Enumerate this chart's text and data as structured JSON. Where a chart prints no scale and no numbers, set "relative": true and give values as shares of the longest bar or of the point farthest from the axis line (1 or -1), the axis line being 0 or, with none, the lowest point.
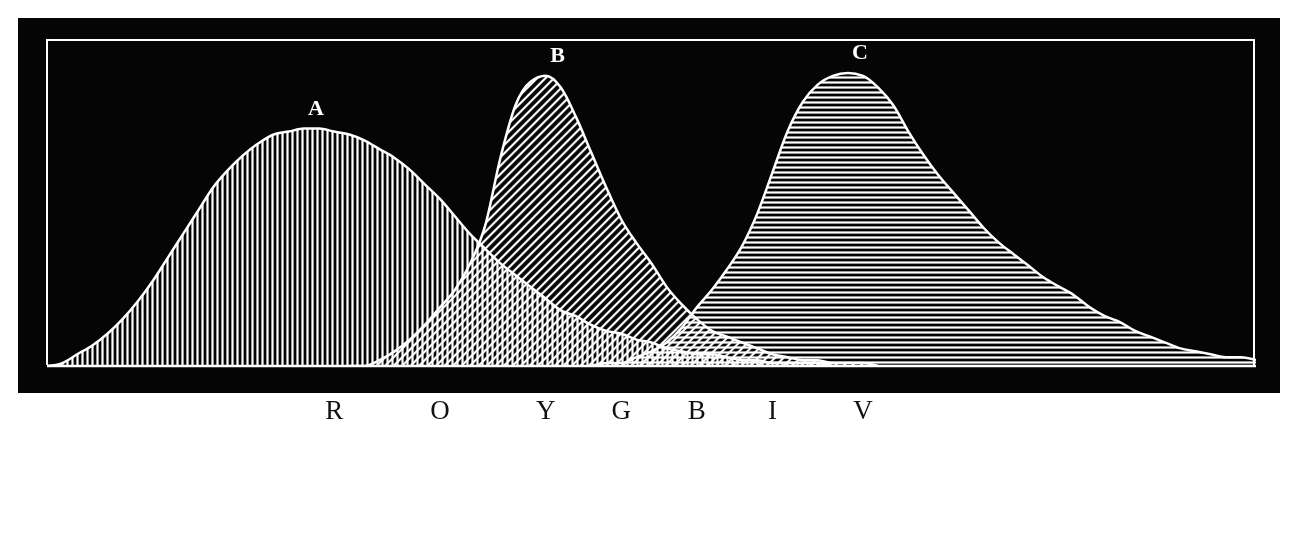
{
  "chart_data": {
    "type": "area",
    "relative": true,
    "tick_labels": "x",
    "categories": [
      null,
      null,
      null,
      null,
      null,
      null,
      null,
      null,
      null,
      null,
      null,
      null,
      null,
      null,
      null,
      null,
      null,
      null,
      null,
      "R",
      null,
      null,
      null,
      null,
      null,
      null,
      "O",
      null,
      null,
      null,
      null,
      null,
      null,
      "Y",
      null,
      null,
      null,
      null,
      "G",
      null,
      null,
      null,
      null,
      "B",
      null,
      null,
      null,
      null,
      "I",
      null,
      null,
      null,
      null,
      null,
      "V",
      null,
      null,
      null,
      null,
      null,
      null,
      null,
      null,
      null,
      null,
      null,
      null,
      null,
      null,
      null,
      null,
      null,
      null,
      null,
      null,
      null,
      null,
      null,
      null,
      null,
      null
    ],
    "series": [
      {
        "name": "A",
        "color": "#ffffff",
        "values": [
          0,
          0.01,
          0.04,
          0.07,
          0.11,
          0.16,
          0.22,
          0.29,
          0.37,
          0.45,
          0.53,
          0.61,
          0.67,
          0.72,
          0.76,
          0.79,
          0.8,
          0.81,
          0.81,
          0.8,
          0.79,
          0.77,
          0.74,
          0.71,
          0.67,
          0.62,
          0.57,
          0.51,
          0.45,
          0.4,
          0.35,
          0.31,
          0.27,
          0.23,
          0.19,
          0.17,
          0.14,
          0.12,
          0.11,
          0.09,
          0.08,
          0.06,
          0.05,
          0.04,
          0.04,
          0.03,
          0.02,
          0.02,
          0.01,
          0.01,
          0.01,
          0.01,
          0,
          null,
          null,
          null,
          null,
          null,
          null,
          null,
          null,
          null,
          null,
          null,
          null,
          null,
          null,
          null,
          null,
          null,
          null,
          null,
          null,
          null,
          null,
          null,
          null,
          null,
          null,
          null,
          null
        ]
      },
      {
        "name": "B",
        "color": "#ffffff",
        "values": [
          null,
          null,
          null,
          null,
          null,
          null,
          null,
          null,
          null,
          null,
          null,
          null,
          null,
          null,
          null,
          null,
          null,
          null,
          null,
          null,
          0,
          0,
          0.02,
          0.05,
          0.09,
          0.14,
          0.2,
          0.26,
          0.35,
          0.48,
          0.71,
          0.89,
          0.97,
          0.99,
          0.95,
          0.85,
          0.73,
          0.61,
          0.5,
          0.42,
          0.35,
          0.27,
          0.21,
          0.16,
          0.12,
          0.1,
          0.08,
          0.06,
          0.04,
          0.03,
          0.02,
          0.02,
          0.01,
          0.01,
          0.01,
          0,
          null,
          null,
          null,
          null,
          null,
          null,
          null,
          null,
          null,
          null,
          null,
          null,
          null,
          null,
          null,
          null,
          null,
          null,
          null,
          null,
          null,
          null,
          null,
          null,
          null
        ]
      },
      {
        "name": "C",
        "color": "#ffffff",
        "values": [
          null,
          null,
          null,
          null,
          null,
          null,
          null,
          null,
          null,
          null,
          null,
          null,
          null,
          null,
          null,
          null,
          null,
          null,
          null,
          null,
          null,
          null,
          null,
          null,
          null,
          null,
          null,
          null,
          null,
          null,
          null,
          null,
          null,
          null,
          null,
          null,
          0,
          0.01,
          0.01,
          0.03,
          0.05,
          0.08,
          0.13,
          0.2,
          0.26,
          0.33,
          0.41,
          0.52,
          0.66,
          0.8,
          0.9,
          0.96,
          0.99,
          1,
          0.99,
          0.95,
          0.89,
          0.8,
          0.72,
          0.65,
          0.59,
          0.53,
          0.47,
          0.42,
          0.38,
          0.34,
          0.3,
          0.27,
          0.24,
          0.2,
          0.17,
          0.15,
          0.12,
          0.1,
          0.08,
          0.06,
          0.05,
          0.04,
          0.03,
          0.03,
          0.02
        ]
      }
    ]
  }
}
